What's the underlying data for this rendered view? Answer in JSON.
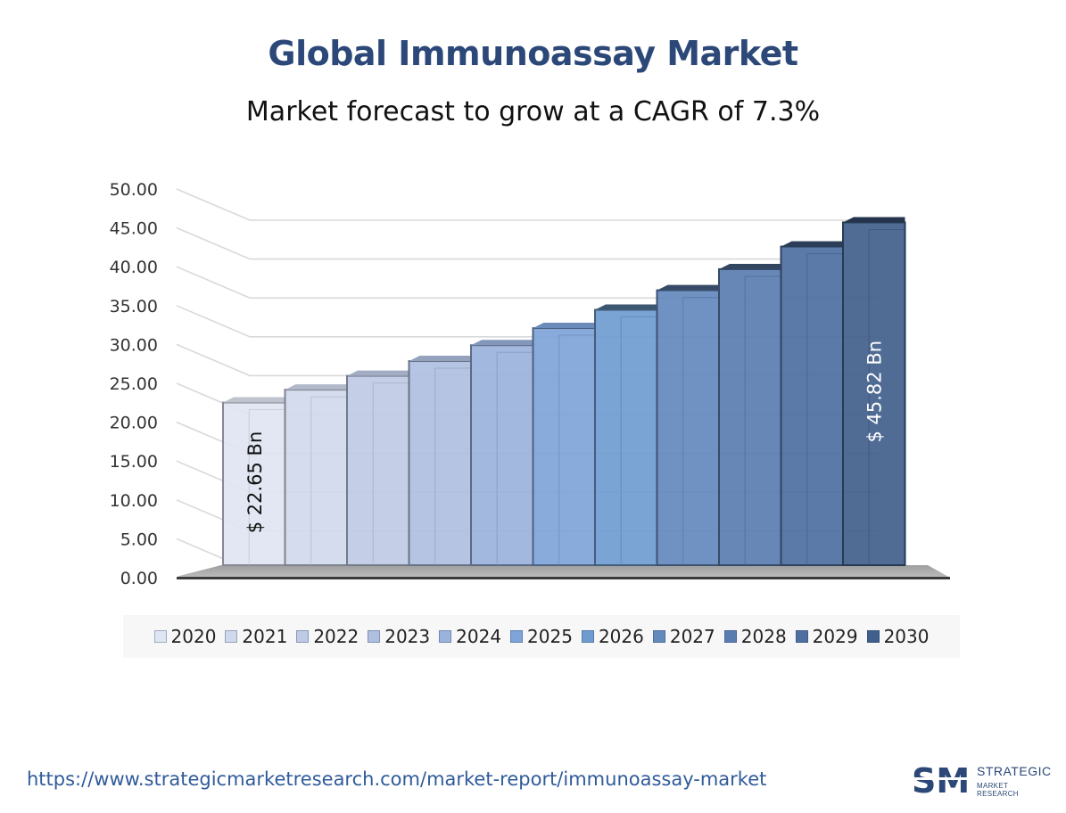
{
  "title": "Global Immunoassay Market",
  "subtitle": "Market forecast to grow at a CAGR of 7.3%",
  "chart_data": {
    "type": "bar",
    "title": "Global Immunoassay Market",
    "subtitle": "Market forecast to grow at a CAGR of 7.3%",
    "xlabel": "",
    "ylabel": "",
    "ylim": [
      0,
      50
    ],
    "yticks": [
      "0.00",
      "5.00",
      "10.00",
      "15.00",
      "20.00",
      "25.00",
      "30.00",
      "35.00",
      "40.00",
      "45.00",
      "50.00"
    ],
    "categories": [
      "2020",
      "2021",
      "2022",
      "2023",
      "2024",
      "2025",
      "2026",
      "2027",
      "2028",
      "2029",
      "2030"
    ],
    "values": [
      22.65,
      24.3,
      26.08,
      27.98,
      30.02,
      32.22,
      34.57,
      37.09,
      39.8,
      42.71,
      45.82
    ],
    "colors": [
      "#dfe5f2",
      "#d0d9ec",
      "#bfcbe5",
      "#aebfe0",
      "#9ab2dc",
      "#7ea4d8",
      "#6f9ccf",
      "#6489bd",
      "#5a7db0",
      "#4e6f9f",
      "#415f8c"
    ],
    "data_labels": [
      {
        "category": "2020",
        "text": "$ 22.65 Bn",
        "color": "#111111"
      },
      {
        "category": "2030",
        "text": "$ 45.82 Bn",
        "color": "#ffffff"
      }
    ],
    "legend_position": "bottom",
    "grid": true,
    "three_d": true
  },
  "footer": {
    "url": "https://www.strategicmarketresearch.com/market-report/immunoassay-market",
    "logo_text_1": "STRATEGIC",
    "logo_text_2": "MARKET RESEARCH",
    "logo_mark": "SM"
  }
}
